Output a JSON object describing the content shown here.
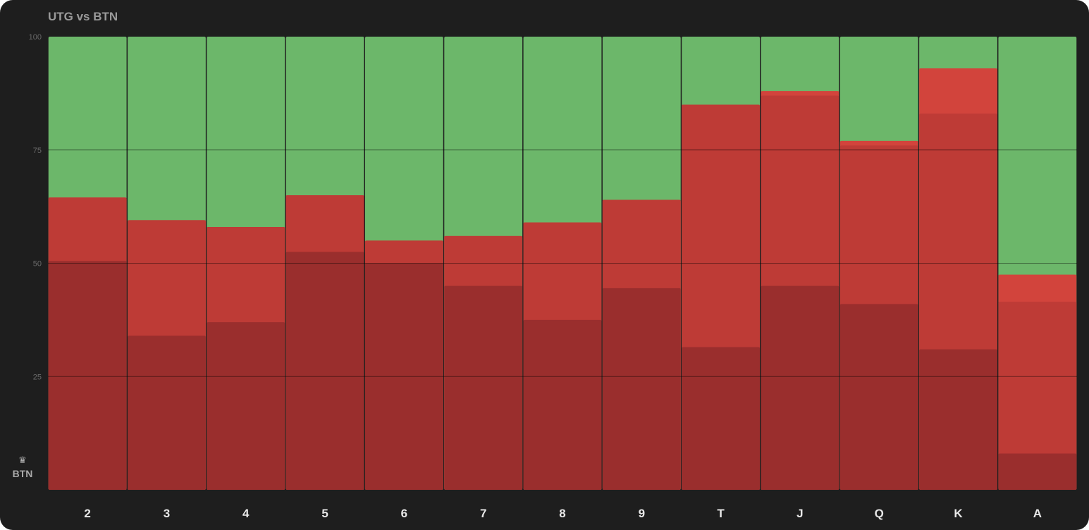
{
  "title": "UTG vs BTN",
  "player_badge": {
    "icon": "crown-icon",
    "label": "BTN"
  },
  "chart_data": {
    "type": "bar",
    "stacked": true,
    "ylim": [
      0,
      100
    ],
    "yticks": [
      25,
      50,
      75,
      100
    ],
    "grid": true,
    "categories": [
      "2",
      "3",
      "4",
      "5",
      "6",
      "7",
      "8",
      "9",
      "T",
      "J",
      "Q",
      "K",
      "A"
    ],
    "layers": [
      {
        "color": "#9a2e2d",
        "values": [
          50.5,
          34,
          37,
          52.5,
          50,
          45,
          37.5,
          44.5,
          31.5,
          45,
          41,
          31,
          8
        ]
      },
      {
        "color": "#be3b36",
        "values": [
          64.5,
          59.5,
          58,
          65,
          55,
          56,
          59,
          64,
          85,
          87,
          76,
          83,
          41.5
        ]
      },
      {
        "color": "#d2443c",
        "values": [
          64.5,
          59.5,
          58,
          65,
          55,
          56,
          59,
          64,
          85,
          88,
          77,
          93,
          47.5
        ]
      },
      {
        "color": "#6cb76a",
        "values": [
          100,
          100,
          100,
          100,
          100,
          100,
          100,
          100,
          100,
          100,
          100,
          100,
          100
        ]
      }
    ]
  }
}
